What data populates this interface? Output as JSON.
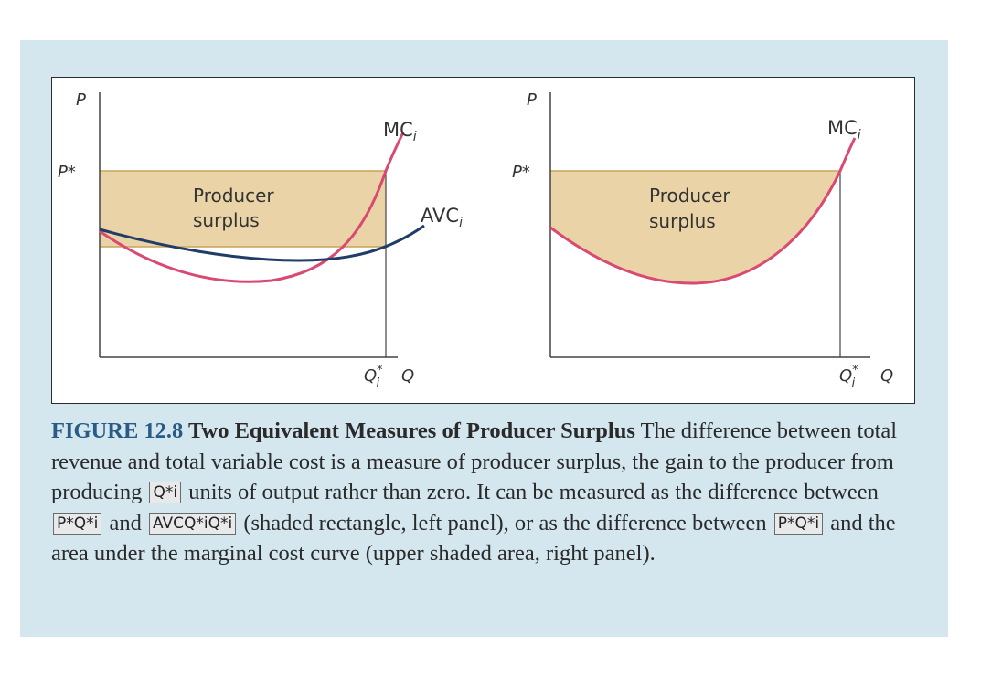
{
  "left_panel": {
    "y_axis": "P",
    "price_label": "P*",
    "mc_label": "MC",
    "mc_sub": "i",
    "avc_label": "AVC",
    "avc_sub": "i",
    "shade_label_1": "Producer",
    "shade_label_2": "surplus",
    "q_star": "Q",
    "q_star_sup": "*",
    "q_star_sub": "i",
    "x_axis": "Q"
  },
  "right_panel": {
    "y_axis": "P",
    "price_label": "P*",
    "mc_label": "MC",
    "mc_sub": "i",
    "shade_label_1": "Producer",
    "shade_label_2": "surplus",
    "q_star": "Q",
    "q_star_sup": "*",
    "q_star_sub": "i",
    "x_axis": "Q"
  },
  "colors": {
    "mc_curve": "#d94a72",
    "avc_curve": "#1f3d66",
    "shade": "#ead3a6",
    "shade_edge": "#c9a35a",
    "background": "#d4e7ef"
  },
  "caption": {
    "figure_number": "FIGURE 12.8",
    "title": "Two Equivalent Measures of Producer Surplus",
    "text_1": " The difference between total revenue and total variable cost is a measure of producer surplus, the gain to the producer from producing ",
    "eq_1": "Q*i",
    "text_2": " units of output rather than zero. It can be measured as the difference between ",
    "eq_2": "P*Q*i",
    "text_3": " and ",
    "eq_3": "AVCQ*iQ*i",
    "text_4": " (shaded rectangle, left panel), or as the difference between ",
    "eq_4": "P*Q*i",
    "text_5": " and the area under the marginal cost curve (upper shaded area, right panel)."
  }
}
